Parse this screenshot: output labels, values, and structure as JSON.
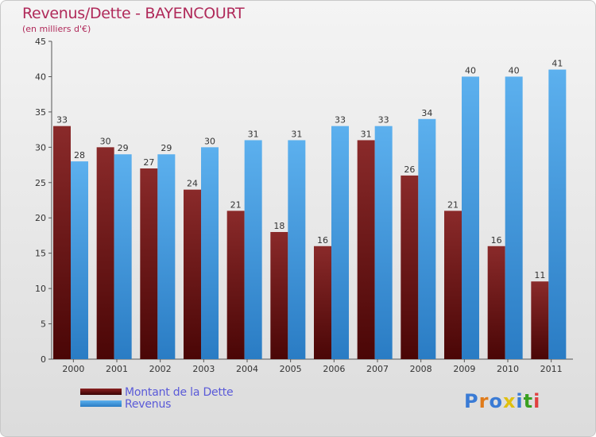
{
  "header": {
    "title": "Revenus/Dette - BAYENCOURT",
    "subtitle": "(en milliers d'€)"
  },
  "legend": [
    {
      "label": "Montant de la Dette",
      "color": "#7a1010"
    },
    {
      "label": "Revenus",
      "color": "#4aa3e6"
    }
  ],
  "logo": {
    "text": "Proxiti",
    "letters": [
      "P",
      "r",
      "o",
      "x",
      "i",
      "t",
      "i"
    ],
    "colors": [
      "#3a7bd5",
      "#e07b1a",
      "#3a7bd5",
      "#e0c010",
      "#3a7bd5",
      "#3aa020",
      "#e04040"
    ]
  },
  "chart_data": {
    "type": "bar",
    "title": "Revenus/Dette - BAYENCOURT",
    "subtitle": "(en milliers d'€)",
    "categories": [
      "2000",
      "2001",
      "2002",
      "2003",
      "2004",
      "2005",
      "2006",
      "2007",
      "2008",
      "2009",
      "2010",
      "2011"
    ],
    "series": [
      {
        "name": "Montant de la Dette",
        "color": "#7a1010",
        "values": [
          33,
          30,
          27,
          24,
          21,
          18,
          16,
          31,
          26,
          21,
          16,
          11
        ]
      },
      {
        "name": "Revenus",
        "color": "#4aa3e6",
        "values": [
          28,
          29,
          29,
          30,
          31,
          31,
          33,
          33,
          34,
          40,
          40,
          41
        ]
      }
    ],
    "ylim": [
      0,
      45
    ],
    "yticks": [
      0,
      5,
      10,
      15,
      20,
      25,
      30,
      35,
      40,
      45
    ],
    "grid": false,
    "legend_position": "bottom-left"
  }
}
